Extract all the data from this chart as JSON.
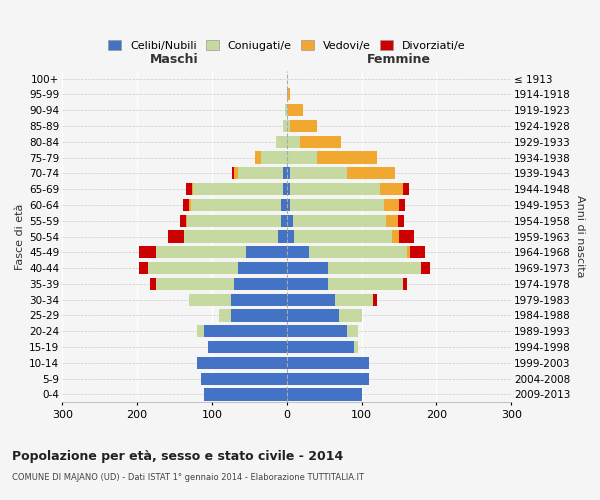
{
  "age_groups": [
    "0-4",
    "5-9",
    "10-14",
    "15-19",
    "20-24",
    "25-29",
    "30-34",
    "35-39",
    "40-44",
    "45-49",
    "50-54",
    "55-59",
    "60-64",
    "65-69",
    "70-74",
    "75-79",
    "80-84",
    "85-89",
    "90-94",
    "95-99",
    "100+"
  ],
  "birth_years": [
    "2009-2013",
    "2004-2008",
    "1999-2003",
    "1994-1998",
    "1989-1993",
    "1984-1988",
    "1979-1983",
    "1974-1978",
    "1969-1973",
    "1964-1968",
    "1959-1963",
    "1954-1958",
    "1949-1953",
    "1944-1948",
    "1939-1943",
    "1934-1938",
    "1929-1933",
    "1924-1928",
    "1919-1923",
    "1914-1918",
    "≤ 1913"
  ],
  "maschi": {
    "celibi": [
      110,
      115,
      120,
      105,
      110,
      75,
      75,
      70,
      65,
      55,
      12,
      8,
      8,
      5,
      5,
      0,
      0,
      0,
      0,
      0,
      0
    ],
    "coniugati": [
      0,
      0,
      0,
      0,
      10,
      15,
      55,
      105,
      120,
      120,
      125,
      125,
      120,
      120,
      60,
      35,
      15,
      5,
      2,
      0,
      0
    ],
    "vedovi": [
      0,
      0,
      0,
      0,
      0,
      0,
      0,
      0,
      0,
      0,
      0,
      2,
      2,
      2,
      5,
      8,
      0,
      0,
      0,
      0,
      0
    ],
    "divorziati": [
      0,
      0,
      0,
      0,
      0,
      0,
      0,
      8,
      12,
      22,
      22,
      8,
      8,
      8,
      3,
      0,
      0,
      0,
      0,
      0,
      0
    ]
  },
  "femmine": {
    "nubili": [
      100,
      110,
      110,
      90,
      80,
      70,
      65,
      55,
      55,
      30,
      10,
      8,
      5,
      5,
      5,
      0,
      0,
      0,
      0,
      0,
      0
    ],
    "coniugate": [
      0,
      0,
      0,
      5,
      15,
      30,
      50,
      100,
      125,
      130,
      130,
      125,
      125,
      120,
      75,
      40,
      18,
      5,
      2,
      0,
      0
    ],
    "vedove": [
      0,
      0,
      0,
      0,
      0,
      0,
      0,
      0,
      0,
      5,
      10,
      15,
      20,
      30,
      65,
      80,
      55,
      35,
      20,
      5,
      0
    ],
    "divorziate": [
      0,
      0,
      0,
      0,
      0,
      0,
      5,
      5,
      12,
      20,
      20,
      8,
      8,
      8,
      0,
      0,
      0,
      0,
      0,
      0,
      0
    ]
  },
  "colors": {
    "celibi": "#4472c4",
    "coniugati": "#c5d9a0",
    "vedovi": "#f0a830",
    "divorziati": "#cc0000"
  },
  "xlim": 300,
  "title": "Popolazione per età, sesso e stato civile - 2014",
  "subtitle": "COMUNE DI MAJANO (UD) - Dati ISTAT 1° gennaio 2014 - Elaborazione TUTTITALIA.IT",
  "xlabel_left": "Maschi",
  "xlabel_right": "Femmine",
  "ylabel_left": "Fasce di età",
  "ylabel_right": "Anni di nascita",
  "legend_labels": [
    "Celibi/Nubili",
    "Coniugati/e",
    "Vedovi/e",
    "Divorziati/e"
  ],
  "background_color": "#f5f5f5"
}
